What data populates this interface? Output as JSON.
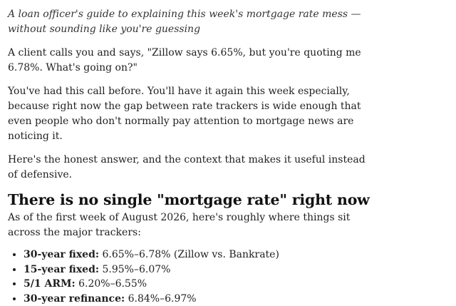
{
  "article": {
    "subtitle": "A loan officer's guide to explaining this week's mortgage rate mess — without sounding like you're guessing",
    "paragraphs": [
      "A client calls you and says, \"Zillow says 6.65%, but you're quoting me 6.78%. What's going on?\"",
      "You've had this call before. You'll have it again this week especially, because right now the gap between rate trackers is wide enough that even people who don't normally pay attention to mortgage news are noticing it.",
      "Here's the honest answer, and the context that makes it useful instead of defensive."
    ],
    "section": {
      "heading": "There is no single \"mortgage rate\" right now",
      "lead": "As of the first week of August 2026, here's roughly where things sit across the major trackers:",
      "rates": [
        {
          "label": "30-year fixed:",
          "value": "6.65%–6.78% (Zillow vs. Bankrate)"
        },
        {
          "label": "15-year fixed:",
          "value": "5.95%–6.07%"
        },
        {
          "label": "5/1 ARM:",
          "value": "6.20%–6.55%"
        },
        {
          "label": "30-year refinance:",
          "value": "6.84%–6.97%"
        }
      ]
    }
  }
}
